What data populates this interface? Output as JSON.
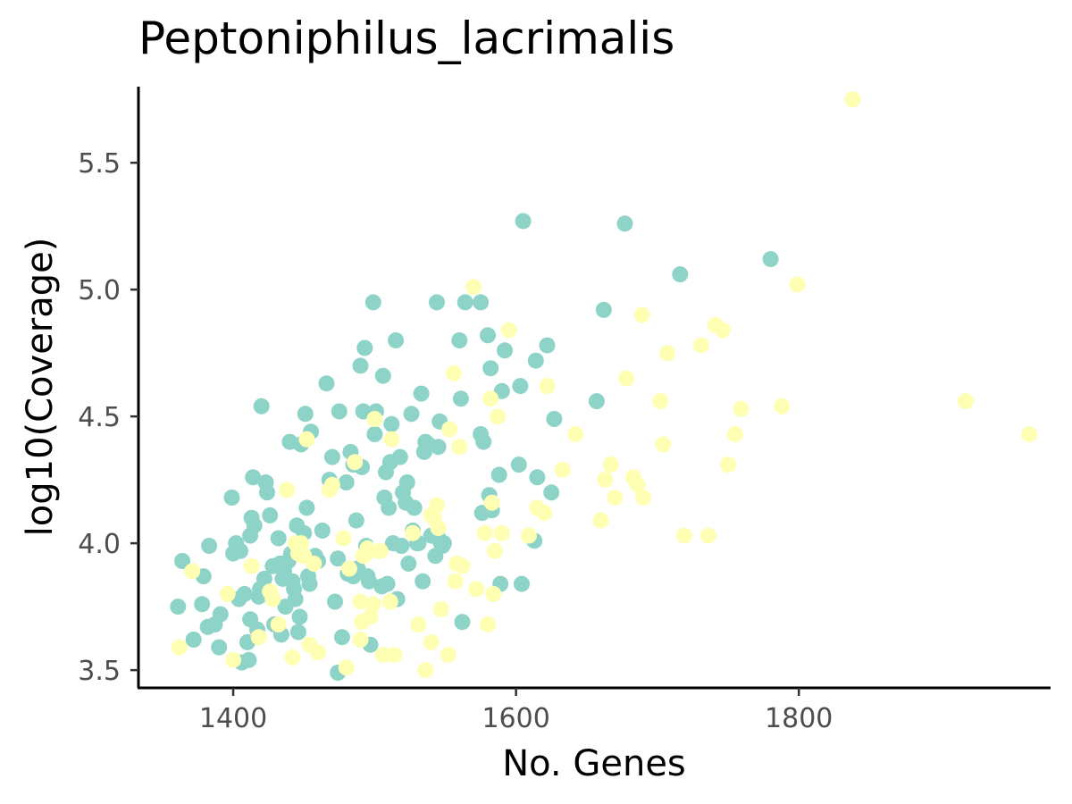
{
  "chart_data": {
    "type": "scatter",
    "title": "Peptoniphilus_lacrimalis",
    "xlabel": "No. Genes",
    "ylabel": "log10(Coverage)",
    "xlim": [
      1333,
      1978
    ],
    "ylim": [
      3.43,
      5.8
    ],
    "x_ticks": [
      1400,
      1600,
      1800
    ],
    "y_ticks": [
      3.5,
      4.0,
      4.5,
      5.0,
      5.5
    ],
    "x_tick_labels": [
      "1400",
      "1600",
      "1800"
    ],
    "y_tick_labels": [
      "3.5",
      "4.0",
      "4.5",
      "5.0",
      "5.5"
    ],
    "grid": false,
    "legend": "none",
    "series": [
      {
        "color": "#8dd3c7",
        "points": [
          [
            1361,
            3.75
          ],
          [
            1364,
            3.93
          ],
          [
            1372,
            3.62
          ],
          [
            1378,
            3.76
          ],
          [
            1379,
            3.87
          ],
          [
            1382,
            3.67
          ],
          [
            1383,
            3.99
          ],
          [
            1387,
            3.68
          ],
          [
            1390,
            3.59
          ],
          [
            1391,
            3.72
          ],
          [
            1399,
            4.18
          ],
          [
            1400,
            3.96
          ],
          [
            1402,
            4.0
          ],
          [
            1404,
            3.78
          ],
          [
            1405,
            3.97
          ],
          [
            1406,
            3.53
          ],
          [
            1408,
            3.8
          ],
          [
            1410,
            3.61
          ],
          [
            1411,
            3.54
          ],
          [
            1412,
            3.7
          ],
          [
            1412,
            4.03
          ],
          [
            1413,
            4.1
          ],
          [
            1414,
            4.26
          ],
          [
            1415,
            4.07
          ],
          [
            1417,
            3.66
          ],
          [
            1418,
            3.79
          ],
          [
            1419,
            3.82
          ],
          [
            1420,
            4.54
          ],
          [
            1422,
            3.86
          ],
          [
            1423,
            4.24
          ],
          [
            1424,
            4.2
          ],
          [
            1425,
            3.8
          ],
          [
            1426,
            4.11
          ],
          [
            1428,
            3.91
          ],
          [
            1429,
            3.68
          ],
          [
            1432,
            4.02
          ],
          [
            1433,
            3.92
          ],
          [
            1434,
            3.64
          ],
          [
            1435,
            3.86
          ],
          [
            1436,
            3.89
          ],
          [
            1437,
            3.75
          ],
          [
            1439,
            3.93
          ],
          [
            1440,
            4.4
          ],
          [
            1441,
            3.96
          ],
          [
            1442,
            3.85
          ],
          [
            1443,
            3.82
          ],
          [
            1444,
            3.78
          ],
          [
            1445,
            4.07
          ],
          [
            1446,
            3.65
          ],
          [
            1447,
            3.71
          ],
          [
            1448,
            4.39
          ],
          [
            1450,
            4.04
          ],
          [
            1451,
            4.51
          ],
          [
            1452,
            4.14
          ],
          [
            1453,
            3.87
          ],
          [
            1454,
            3.84
          ],
          [
            1455,
            4.44
          ],
          [
            1458,
            3.95
          ],
          [
            1460,
            3.93
          ],
          [
            1463,
            4.05
          ],
          [
            1466,
            4.63
          ],
          [
            1468,
            4.25
          ],
          [
            1470,
            4.34
          ],
          [
            1472,
            3.77
          ],
          [
            1474,
            3.49
          ],
          [
            1474,
            3.94
          ],
          [
            1475,
            4.52
          ],
          [
            1477,
            3.63
          ],
          [
            1480,
            4.24
          ],
          [
            1481,
            3.88
          ],
          [
            1483,
            4.36
          ],
          [
            1485,
            4.31
          ],
          [
            1485,
            3.87
          ],
          [
            1487,
            4.09
          ],
          [
            1488,
            3.9
          ],
          [
            1490,
            4.7
          ],
          [
            1491,
            4.3
          ],
          [
            1492,
            4.52
          ],
          [
            1493,
            4.77
          ],
          [
            1494,
            3.99
          ],
          [
            1495,
            3.87
          ],
          [
            1496,
            3.85
          ],
          [
            1497,
            3.6
          ],
          [
            1499,
            4.95
          ],
          [
            1500,
            4.43
          ],
          [
            1501,
            4.52
          ],
          [
            1505,
            3.83
          ],
          [
            1506,
            4.66
          ],
          [
            1507,
            4.18
          ],
          [
            1508,
            4.28
          ],
          [
            1509,
            3.84
          ],
          [
            1510,
            4.14
          ],
          [
            1511,
            4.32
          ],
          [
            1512,
            4.47
          ],
          [
            1513,
            4.0
          ],
          [
            1515,
            4.8
          ],
          [
            1516,
            3.78
          ],
          [
            1518,
            4.34
          ],
          [
            1519,
            3.99
          ],
          [
            1520,
            4.2
          ],
          [
            1522,
            4.16
          ],
          [
            1523,
            4.24
          ],
          [
            1524,
            3.92
          ],
          [
            1526,
            4.51
          ],
          [
            1527,
            4.05
          ],
          [
            1528,
            4.14
          ],
          [
            1530,
            4.0
          ],
          [
            1531,
            4.0
          ],
          [
            1533,
            4.59
          ],
          [
            1534,
            3.85
          ],
          [
            1535,
            4.36
          ],
          [
            1536,
            4.4
          ],
          [
            1538,
            4.39
          ],
          [
            1540,
            4.03
          ],
          [
            1543,
            3.95
          ],
          [
            1544,
            4.95
          ],
          [
            1545,
            4.02
          ],
          [
            1545,
            4.38
          ],
          [
            1546,
            4.48
          ],
          [
            1547,
            4.0
          ],
          [
            1548,
            3.99
          ],
          [
            1549,
            4.0
          ],
          [
            1560,
            4.8
          ],
          [
            1561,
            4.57
          ],
          [
            1562,
            3.69
          ],
          [
            1564,
            4.95
          ],
          [
            1575,
            4.95
          ],
          [
            1575,
            4.43
          ],
          [
            1576,
            4.12
          ],
          [
            1577,
            4.4
          ],
          [
            1580,
            4.82
          ],
          [
            1581,
            4.19
          ],
          [
            1582,
            4.69
          ],
          [
            1583,
            4.13
          ],
          [
            1588,
            4.27
          ],
          [
            1589,
            3.84
          ],
          [
            1590,
            4.6
          ],
          [
            1592,
            4.76
          ],
          [
            1602,
            4.31
          ],
          [
            1603,
            4.62
          ],
          [
            1604,
            3.84
          ],
          [
            1605,
            5.27
          ],
          [
            1613,
            4.01
          ],
          [
            1614,
            4.72
          ],
          [
            1615,
            4.26
          ],
          [
            1622,
            4.78
          ],
          [
            1625,
            4.2
          ],
          [
            1627,
            4.49
          ],
          [
            1657,
            4.56
          ],
          [
            1662,
            4.92
          ],
          [
            1677,
            5.26
          ],
          [
            1716,
            5.06
          ],
          [
            1780,
            5.12
          ]
        ]
      },
      {
        "color": "#ffffb3",
        "points": [
          [
            1362,
            3.59
          ],
          [
            1371,
            3.89
          ],
          [
            1396,
            3.8
          ],
          [
            1400,
            3.54
          ],
          [
            1413,
            3.91
          ],
          [
            1418,
            3.63
          ],
          [
            1426,
            3.81
          ],
          [
            1428,
            3.78
          ],
          [
            1432,
            3.68
          ],
          [
            1438,
            4.21
          ],
          [
            1442,
            3.55
          ],
          [
            1444,
            4.0
          ],
          [
            1446,
            3.96
          ],
          [
            1448,
            4.0
          ],
          [
            1450,
            3.95
          ],
          [
            1452,
            4.41
          ],
          [
            1454,
            3.6
          ],
          [
            1457,
            3.92
          ],
          [
            1460,
            3.57
          ],
          [
            1468,
            4.21
          ],
          [
            1470,
            4.23
          ],
          [
            1478,
            4.02
          ],
          [
            1480,
            3.51
          ],
          [
            1482,
            3.9
          ],
          [
            1486,
            4.32
          ],
          [
            1490,
            3.62
          ],
          [
            1490,
            3.77
          ],
          [
            1491,
            3.69
          ],
          [
            1492,
            3.95
          ],
          [
            1494,
            3.96
          ],
          [
            1495,
            3.98
          ],
          [
            1497,
            3.71
          ],
          [
            1499,
            3.76
          ],
          [
            1500,
            4.49
          ],
          [
            1504,
            3.97
          ],
          [
            1506,
            3.56
          ],
          [
            1511,
            3.77
          ],
          [
            1512,
            4.41
          ],
          [
            1514,
            3.56
          ],
          [
            1527,
            4.04
          ],
          [
            1531,
            3.68
          ],
          [
            1536,
            3.5
          ],
          [
            1540,
            3.61
          ],
          [
            1540,
            4.11
          ],
          [
            1542,
            4.1
          ],
          [
            1544,
            4.15
          ],
          [
            1545,
            4.06
          ],
          [
            1547,
            3.74
          ],
          [
            1552,
            3.56
          ],
          [
            1553,
            4.45
          ],
          [
            1556,
            4.67
          ],
          [
            1557,
            3.85
          ],
          [
            1558,
            3.92
          ],
          [
            1560,
            4.38
          ],
          [
            1562,
            3.91
          ],
          [
            1570,
            5.01
          ],
          [
            1572,
            3.82
          ],
          [
            1578,
            4.04
          ],
          [
            1580,
            3.68
          ],
          [
            1582,
            4.57
          ],
          [
            1583,
            4.16
          ],
          [
            1584,
            3.8
          ],
          [
            1585,
            3.97
          ],
          [
            1587,
            4.5
          ],
          [
            1590,
            4.04
          ],
          [
            1595,
            4.84
          ],
          [
            1609,
            4.03
          ],
          [
            1615,
            4.14
          ],
          [
            1620,
            4.12
          ],
          [
            1622,
            4.62
          ],
          [
            1633,
            4.29
          ],
          [
            1642,
            4.43
          ],
          [
            1660,
            4.09
          ],
          [
            1663,
            4.25
          ],
          [
            1667,
            4.31
          ],
          [
            1670,
            4.18
          ],
          [
            1678,
            4.65
          ],
          [
            1683,
            4.26
          ],
          [
            1686,
            4.23
          ],
          [
            1689,
            4.9
          ],
          [
            1690,
            4.18
          ],
          [
            1702,
            4.56
          ],
          [
            1704,
            4.39
          ],
          [
            1707,
            4.75
          ],
          [
            1719,
            4.03
          ],
          [
            1731,
            4.78
          ],
          [
            1736,
            4.03
          ],
          [
            1741,
            4.86
          ],
          [
            1746,
            4.84
          ],
          [
            1750,
            4.31
          ],
          [
            1755,
            4.43
          ],
          [
            1759,
            4.53
          ],
          [
            1788,
            4.54
          ],
          [
            1799,
            5.02
          ],
          [
            1838,
            5.75
          ],
          [
            1918,
            4.56
          ],
          [
            1963,
            4.43
          ]
        ]
      }
    ]
  }
}
